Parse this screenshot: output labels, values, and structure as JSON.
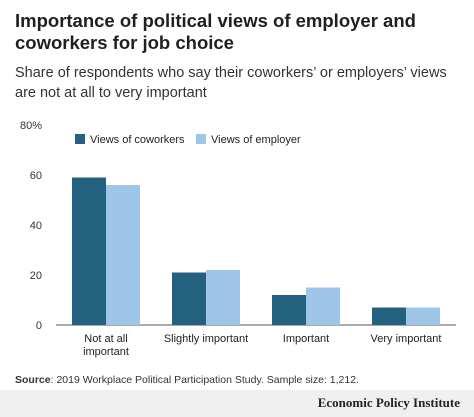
{
  "source": {
    "label": "Source",
    "text": ": 2019 Workplace Political Participation Study. Sample size: 1,212."
  },
  "footer": {
    "brand": "Economic Policy Institute"
  },
  "chart_data": {
    "type": "bar",
    "title": "Importance of political views of employer and coworkers for job choice",
    "subtitle": "Share of respondents who say their coworkers’ or employers’ views are not at all to very important",
    "categories": [
      "Not at all important",
      "Slightly important",
      "Important",
      "Very important"
    ],
    "category_lines": [
      [
        "Not at all",
        "important"
      ],
      [
        "Slightly important"
      ],
      [
        "Important"
      ],
      [
        "Very important"
      ]
    ],
    "series": [
      {
        "name": "Views of coworkers",
        "color": "#24617f",
        "values": [
          59,
          21,
          12,
          7
        ]
      },
      {
        "name": "Views of employer",
        "color": "#9dc6e9",
        "values": [
          56,
          22,
          15,
          7
        ]
      }
    ],
    "ylim": [
      0,
      80
    ],
    "yticks": [
      0,
      20,
      40,
      60,
      80
    ],
    "ytick_labels": [
      "0",
      "20",
      "40",
      "60",
      "80%"
    ],
    "grid": false,
    "legend_position": "top-left"
  }
}
